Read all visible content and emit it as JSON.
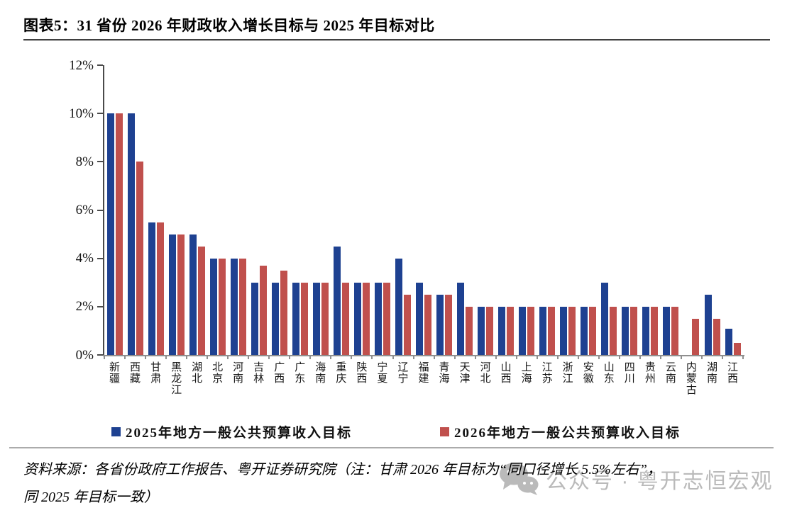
{
  "title": "图表5：31 省份 2026 年财政收入增长目标与 2025 年目标对比",
  "chart_data": {
    "type": "bar",
    "title": "图表5：31 省份 2026 年财政收入增长目标与 2025 年目标对比",
    "categories": [
      "新疆",
      "西藏",
      "甘肃",
      "黑龙江",
      "湖北",
      "北京",
      "河南",
      "吉林",
      "广西",
      "广东",
      "海南",
      "重庆",
      "陕西",
      "宁夏",
      "辽宁",
      "福建",
      "青海",
      "天津",
      "河北",
      "山西",
      "上海",
      "江苏",
      "浙江",
      "安徽",
      "山东",
      "四川",
      "贵州",
      "云南",
      "内蒙古",
      "湖南",
      "江西"
    ],
    "series": [
      {
        "name": "2025年地方一般公共预算收入目标",
        "color": "#1E4191",
        "values": [
          10,
          10,
          5.5,
          5,
          5,
          4,
          4,
          3,
          3,
          3,
          3,
          4.5,
          3,
          3,
          4,
          3,
          2.5,
          3,
          2,
          2,
          2,
          2,
          2,
          2,
          3,
          2,
          2,
          2,
          null,
          2.5,
          1.1
        ]
      },
      {
        "name": "2026年地方一般公共预算收入目标",
        "color": "#C0504D",
        "values": [
          10,
          8,
          5.5,
          5,
          4.5,
          4,
          4,
          3.7,
          3.5,
          3,
          3,
          3,
          3,
          3,
          2.5,
          2.5,
          2.5,
          2,
          2,
          2,
          2,
          2,
          2,
          2,
          2,
          2,
          2,
          2,
          1.5,
          1.5,
          0.5
        ]
      }
    ],
    "unit": "%",
    "xlabel": "",
    "ylabel": "",
    "ylim": [
      0,
      12
    ],
    "ytick_labels": [
      "0%",
      "2%",
      "4%",
      "6%",
      "8%",
      "10%",
      "12%"
    ],
    "grid": false,
    "legend_position": "bottom"
  },
  "footer": {
    "line1": "资料来源：各省份政府工作报告、粤开证券研究院（注：甘肃 2026 年目标为“同口径增长 5.5%左右”，",
    "line2": "同 2025 年目标一致）"
  },
  "watermark": {
    "icon": "wechat-icon",
    "text": "公众号 · 粤开志恒宏观"
  }
}
